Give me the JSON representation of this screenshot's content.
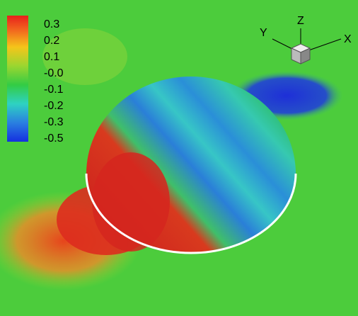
{
  "colorbar": {
    "labels": [
      "0.3",
      "0.2",
      "0.1",
      "-0.0",
      "-0.1",
      "-0.2",
      "-0.3",
      "-0.5"
    ]
  },
  "axes_triad": {
    "x": "X",
    "y": "Y",
    "z": "Z"
  }
}
